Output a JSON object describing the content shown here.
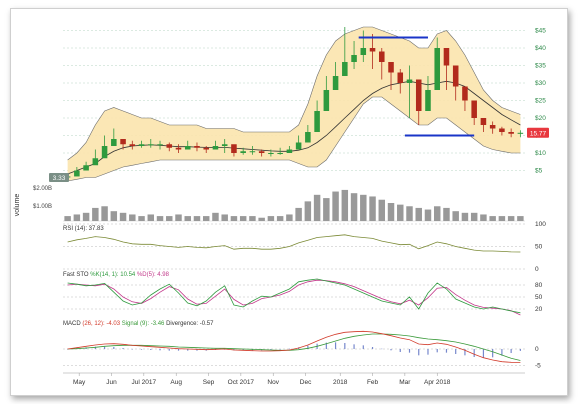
{
  "chart_data": {
    "type": "candlestick",
    "price_panel": {
      "y_ticks": [
        "$5",
        "$10",
        "$15",
        "$20",
        "$25",
        "$30",
        "$35",
        "$40",
        "$45"
      ],
      "y_tick_values": [
        5,
        10,
        15,
        20,
        25,
        30,
        35,
        40,
        45
      ],
      "ylim": [
        2,
        46
      ],
      "start_label": "3.33",
      "last_label": "15.77",
      "last_value": 15.77,
      "start_value": 3.33,
      "resistance": {
        "value": 43,
        "from": 0.64,
        "to": 0.79
      },
      "support": {
        "value": 15,
        "from": 0.74,
        "to": 0.89
      },
      "series": {
        "close": [
          3.3,
          5,
          6.5,
          8.5,
          12,
          14,
          12.5,
          12,
          12.5,
          12.5,
          12.5,
          11.5,
          11,
          12,
          11.5,
          11,
          12,
          12.5,
          10,
          10.5,
          10.5,
          10,
          10,
          10,
          11,
          13,
          16,
          22,
          28,
          32,
          36,
          38,
          40,
          39,
          36,
          33,
          30,
          31,
          22,
          28,
          40,
          35,
          29,
          25,
          20,
          18,
          17,
          16,
          15.5,
          15.77
        ],
        "high": [
          3.8,
          6,
          7.5,
          11,
          15,
          17,
          14,
          13.5,
          13.5,
          14,
          13.5,
          13,
          12.5,
          13.5,
          13,
          12,
          13.5,
          14,
          11.5,
          11.5,
          12,
          11,
          11,
          11.5,
          12,
          15,
          18,
          25,
          32,
          36,
          46,
          42,
          45,
          44,
          40,
          36,
          34,
          35,
          26,
          32,
          43,
          40,
          33,
          28,
          22,
          20,
          19,
          17.5,
          17,
          16.5
        ],
        "low": [
          3,
          4.5,
          6,
          8,
          11,
          12,
          11,
          11,
          11.5,
          11.5,
          11,
          10.5,
          10,
          11,
          10.5,
          10,
          11,
          10,
          9,
          9.5,
          9.5,
          9,
          9,
          9.5,
          10,
          12,
          15,
          20,
          24,
          28,
          32,
          34,
          36,
          34,
          31,
          28,
          27,
          20,
          18,
          22,
          34,
          28,
          25,
          22,
          18,
          16,
          15.5,
          15,
          14.5,
          14.5
        ]
      },
      "bollinger_upper": [
        8,
        10,
        13,
        18,
        22,
        23,
        22,
        21,
        20,
        20,
        19,
        18,
        18,
        18,
        18,
        17,
        17,
        17,
        17,
        16,
        16,
        16,
        16,
        16,
        16,
        18,
        24,
        32,
        38,
        42,
        44,
        45,
        46,
        46,
        45,
        44,
        43,
        42,
        40,
        40,
        44,
        45,
        42,
        38,
        33,
        28,
        25,
        23,
        22,
        21
      ],
      "bollinger_lower": [
        2,
        2.5,
        3,
        3,
        4,
        5,
        6,
        6.5,
        7,
        7.5,
        8,
        8,
        8,
        8,
        8,
        8,
        8,
        8,
        8,
        8,
        8,
        8,
        8,
        8,
        8,
        7,
        6,
        6,
        8,
        12,
        16,
        20,
        24,
        26,
        26,
        24,
        22,
        20,
        18,
        18,
        20,
        20,
        18,
        16,
        14,
        12,
        11,
        10.5,
        10,
        10
      ],
      "moving_average": [
        4,
        5,
        6,
        7,
        9,
        10.5,
        11.5,
        12,
        12.2,
        12.3,
        12.2,
        12,
        11.8,
        11.8,
        11.7,
        11.6,
        11.6,
        11.6,
        11.4,
        11.2,
        11,
        10.8,
        10.6,
        10.5,
        10.5,
        10.8,
        11.5,
        13,
        15,
        17.5,
        20,
        22.5,
        25,
        27,
        28.5,
        29.5,
        30,
        30.5,
        30,
        29.5,
        30,
        30.5,
        30,
        29,
        27,
        25,
        23,
        21,
        19.5,
        18
      ]
    },
    "volume_panel": {
      "ylabel": "volume",
      "y_ticks": [
        "$2.00B",
        "$1.00B"
      ],
      "values": [
        0.3,
        0.4,
        0.5,
        0.8,
        0.9,
        0.6,
        0.5,
        0.4,
        0.3,
        0.4,
        0.3,
        0.3,
        0.4,
        0.3,
        0.3,
        0.3,
        0.5,
        0.4,
        0.3,
        0.3,
        0.3,
        0.2,
        0.3,
        0.3,
        0.4,
        0.8,
        1.2,
        1.6,
        1.4,
        1.8,
        1.9,
        1.7,
        1.6,
        1.5,
        1.3,
        1.1,
        1.0,
        0.9,
        0.8,
        0.7,
        0.9,
        0.8,
        0.6,
        0.5,
        0.5,
        0.4,
        0.3,
        0.3,
        0.3,
        0.3
      ],
      "ylim": [
        0,
        2.2
      ]
    },
    "rsi_panel": {
      "label": "RSI (14): 37.83",
      "y_ticks": [
        "100",
        "50",
        "0"
      ],
      "y_tick_values": [
        100,
        50,
        0
      ],
      "values": [
        60,
        65,
        68,
        72,
        70,
        66,
        60,
        56,
        55,
        55,
        52,
        50,
        48,
        50,
        48,
        47,
        50,
        52,
        44,
        46,
        46,
        44,
        44,
        46,
        50,
        58,
        64,
        70,
        72,
        74,
        76,
        72,
        70,
        68,
        62,
        58,
        54,
        55,
        45,
        52,
        60,
        56,
        50,
        46,
        42,
        40,
        40,
        39,
        38,
        37.83
      ]
    },
    "stochastic_panel": {
      "label_prefix": "Fast STO ",
      "label_k": "%K(14, 1): 10.54",
      "label_d": "%D(5): 4.98",
      "y_ticks": [
        "80",
        "50",
        "20"
      ],
      "y_tick_values": [
        80,
        50,
        20
      ],
      "k": [
        85,
        82,
        78,
        80,
        84,
        62,
        40,
        30,
        35,
        55,
        70,
        82,
        60,
        35,
        28,
        40,
        62,
        78,
        30,
        25,
        40,
        52,
        50,
        60,
        70,
        88,
        92,
        95,
        90,
        85,
        80,
        70,
        60,
        50,
        40,
        35,
        30,
        50,
        20,
        60,
        85,
        70,
        45,
        35,
        25,
        20,
        25,
        20,
        15,
        10.54
      ],
      "d": [
        80,
        82,
        80,
        78,
        82,
        70,
        50,
        38,
        34,
        46,
        62,
        76,
        68,
        45,
        32,
        34,
        52,
        70,
        44,
        30,
        34,
        46,
        50,
        55,
        64,
        80,
        88,
        92,
        91,
        88,
        83,
        76,
        66,
        56,
        46,
        38,
        33,
        42,
        30,
        48,
        72,
        74,
        56,
        42,
        30,
        24,
        22,
        20,
        16,
        4.98
      ]
    },
    "macd_panel": {
      "label_prefix": "MACD ",
      "label_params": "(26, 12): -4.03",
      "label_signal": "Signal (9): -3.46",
      "label_divergence": "Divergence: -0.57",
      "y_ticks": [
        "0",
        "-5"
      ],
      "y_tick_values": [
        0,
        -5
      ],
      "macd": [
        0,
        0.4,
        0.8,
        1.2,
        1.5,
        1.6,
        1.4,
        1.1,
        0.9,
        0.7,
        0.5,
        0.3,
        0.1,
        0,
        -0.1,
        -0.2,
        -0.1,
        0,
        -0.3,
        -0.4,
        -0.5,
        -0.6,
        -0.6,
        -0.5,
        -0.3,
        0.3,
        1.2,
        2.4,
        3.5,
        4.4,
        5,
        5.2,
        5.3,
        5.1,
        4.6,
        4,
        3.3,
        2.8,
        1.5,
        1.3,
        1.8,
        1.4,
        0.6,
        -0.4,
        -1.6,
        -2.6,
        -3.3,
        -3.8,
        -4,
        -4.03
      ],
      "signal": [
        0,
        0.1,
        0.3,
        0.5,
        0.8,
        1,
        1.1,
        1.1,
        1.1,
        1,
        0.9,
        0.8,
        0.6,
        0.5,
        0.4,
        0.3,
        0.2,
        0.2,
        0.1,
        0,
        -0.1,
        -0.2,
        -0.3,
        -0.4,
        -0.4,
        -0.2,
        0.2,
        0.8,
        1.6,
        2.4,
        3.2,
        3.8,
        4.2,
        4.5,
        4.5,
        4.4,
        4.2,
        3.9,
        3.4,
        3,
        2.8,
        2.5,
        2.1,
        1.5,
        0.8,
        0,
        -0.8,
        -1.8,
        -2.8,
        -3.46
      ]
    },
    "x_labels": [
      "May",
      "Jun",
      "Jul 2017",
      "Aug",
      "Sep",
      "Oct 2017",
      "Nov",
      "Dec",
      "2018",
      "Feb",
      "Mar",
      "Apr 2018"
    ],
    "x_label_positions": [
      0.035,
      0.105,
      0.175,
      0.245,
      0.315,
      0.385,
      0.455,
      0.525,
      0.6,
      0.67,
      0.74,
      0.81
    ],
    "colors": {
      "up": "#2e9a3e",
      "down": "#b22a1c",
      "band_fill": "#fbe4ad",
      "band_line": "#6b6b6b",
      "level_line": "#1a35c8",
      "last_badge": "#e8383f",
      "start_badge": "#7a8f86",
      "volume": "#999999",
      "rsi": "#7b8a35",
      "stoch_k": "#2e9a3e",
      "stoch_d": "#c2388a",
      "macd_line": "#d23a2a",
      "macd_signal": "#3a9a3a",
      "grid": "#b8d6c4",
      "axis_text": "#2e8a4a"
    }
  }
}
